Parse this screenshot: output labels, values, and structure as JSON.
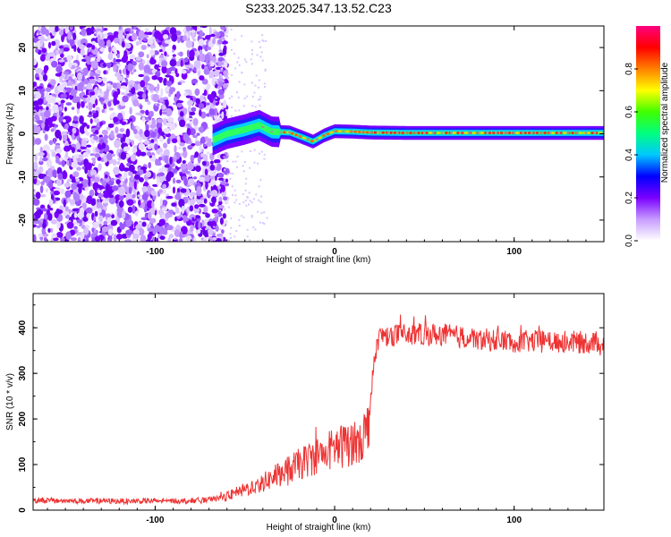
{
  "title": "S233.2025.347.13.52.C23",
  "chart_data": [
    {
      "type": "heatmap",
      "xlabel": "Height of straight line (km)",
      "ylabel": "Frequency (Hz)",
      "xlim": [
        -168,
        150
      ],
      "ylim": [
        -25,
        25
      ],
      "x_ticks": [
        -100,
        0,
        100
      ],
      "y_ticks": [
        -20,
        -10,
        0,
        10,
        20
      ],
      "colorbar": {
        "label": "Normalized spectral amplitude",
        "range": [
          0,
          1
        ],
        "ticks": [
          0.0,
          0.2,
          0.4,
          0.6,
          0.8
        ],
        "colors": [
          "#ffffff",
          "#c79cff",
          "#7a00ff",
          "#0000ff",
          "#00c8ff",
          "#00ff80",
          "#40ff00",
          "#ffff00",
          "#ff8000",
          "#ff0000",
          "#ff0080"
        ]
      },
      "signal_trace": {
        "description_points": [
          [
            -68,
            -1.5
          ],
          [
            -60,
            0.0
          ],
          [
            -50,
            1.0
          ],
          [
            -42,
            2.0
          ],
          [
            -35,
            0.5
          ],
          [
            -25,
            0.3
          ],
          [
            -18,
            -0.8
          ],
          [
            -12,
            -1.8
          ],
          [
            -6,
            -0.4
          ],
          [
            0,
            0.6
          ],
          [
            10,
            0.5
          ],
          [
            20,
            0.3
          ],
          [
            40,
            0.2
          ],
          [
            80,
            0.2
          ],
          [
            120,
            0.2
          ],
          [
            150,
            0.2
          ]
        ]
      },
      "noise_region": {
        "x_range": [
          -168,
          -68
        ],
        "y_range": [
          -25,
          25
        ]
      }
    },
    {
      "type": "line",
      "xlabel": "Height of straight line (km)",
      "ylabel": "SNR (10 * v/v)",
      "xlim": [
        -168,
        150
      ],
      "ylim": [
        0,
        475
      ],
      "x_ticks": [
        -100,
        0,
        100
      ],
      "y_ticks": [
        0,
        100,
        200,
        300,
        400
      ],
      "series": [
        {
          "color": "#ee3333",
          "x": [
            -168,
            -140,
            -110,
            -90,
            -70,
            -60,
            -50,
            -40,
            -30,
            -20,
            -10,
            0,
            10,
            18,
            20,
            22,
            24,
            28,
            40,
            60,
            80,
            100,
            120,
            140,
            150
          ],
          "y": [
            22,
            20,
            20,
            20,
            22,
            30,
            45,
            60,
            80,
            100,
            120,
            135,
            150,
            170,
            250,
            330,
            375,
            385,
            385,
            385,
            375,
            370,
            370,
            368,
            370
          ]
        }
      ]
    }
  ]
}
